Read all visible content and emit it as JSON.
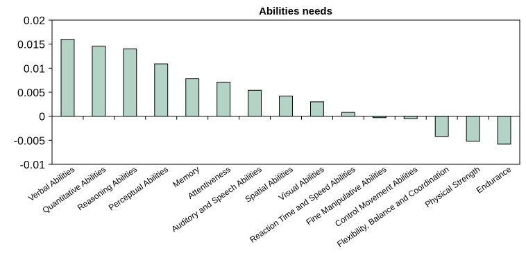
{
  "chart_data": {
    "type": "bar",
    "title": "Abilities needs",
    "xlabel": "",
    "ylabel": "",
    "ylim": [
      -0.01,
      0.02
    ],
    "yticks": [
      0.02,
      0.015,
      0.01,
      0.005,
      0,
      -0.005,
      -0.01
    ],
    "ytick_labels": [
      "0.02",
      "0.015",
      "0.01",
      "0.005",
      "0",
      "-0.005",
      "-0.01"
    ],
    "grid": false,
    "bar_color": "#b3d3c7",
    "categories": [
      "Verbal Abilities",
      "Quantitative Abilities",
      "Reasoning Abilities",
      "Perceptual Abilities",
      "Memory",
      "Attentiveness",
      "Auditory and Speech Abilities",
      "Spatial Abilities",
      "Visual Abilities",
      "Reaction Time and Speed Abilities",
      "Fine Manipulative Abilities",
      "Control Movement Abilities",
      "Flexibility, Balance and Coordination",
      "Physical Strength",
      "Endurance"
    ],
    "values": [
      0.016,
      0.0146,
      0.014,
      0.0109,
      0.0078,
      0.0071,
      0.0054,
      0.0042,
      0.003,
      0.0008,
      -0.0003,
      -0.0005,
      -0.0042,
      -0.0052,
      -0.0058
    ]
  }
}
